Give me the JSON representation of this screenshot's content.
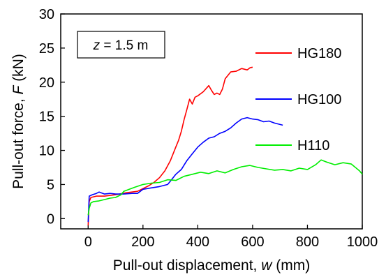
{
  "chart_data": {
    "type": "line",
    "xlabel_prefix": "Pull-out displacement, ",
    "xlabel_var": "w",
    "xlabel_suffix": " (mm)",
    "ylabel_prefix": "Pull-out force, ",
    "ylabel_var": "F",
    "ylabel_suffix": " (kN)",
    "annotation_var": "z",
    "annotation_rest": " = 1.5 m",
    "xlim": [
      -100,
      1000
    ],
    "ylim": [
      -1.5,
      30
    ],
    "xticks": [
      0,
      200,
      400,
      600,
      800,
      1000
    ],
    "yticks": [
      0,
      5,
      10,
      15,
      20,
      25,
      30
    ],
    "grid": false,
    "legend_placement": "right, labels beside line samples",
    "series": [
      {
        "name": "HG180",
        "color": "#ff0000",
        "x": [
          0,
          4,
          10,
          30,
          60,
          100,
          140,
          180,
          200,
          220,
          240,
          260,
          280,
          300,
          310,
          320,
          330,
          340,
          350,
          360,
          370,
          380,
          390,
          400,
          420,
          440,
          450,
          460,
          470,
          480,
          490,
          500,
          520,
          540,
          560,
          580,
          590,
          600
        ],
        "y": [
          -1,
          2.5,
          3.1,
          3.3,
          3.3,
          3.5,
          3.8,
          4.0,
          4.4,
          4.8,
          5.3,
          6.0,
          7.0,
          8.5,
          9.5,
          10.5,
          11.5,
          12.8,
          14.5,
          16.0,
          17.5,
          16.8,
          17.8,
          18.0,
          18.6,
          19.5,
          18.8,
          18.2,
          18.4,
          18.2,
          19.0,
          20.5,
          21.5,
          21.6,
          22.0,
          21.8,
          22.1,
          22.2
        ]
      },
      {
        "name": "HG100",
        "color": "#0000ff",
        "x": [
          0,
          4,
          15,
          30,
          40,
          60,
          80,
          100,
          130,
          160,
          180,
          200,
          230,
          260,
          290,
          300,
          320,
          340,
          360,
          380,
          400,
          420,
          440,
          460,
          480,
          500,
          520,
          540,
          560,
          580,
          600,
          620,
          640,
          660,
          680,
          700,
          710
        ],
        "y": [
          -0.5,
          3.3,
          3.5,
          3.7,
          3.9,
          3.6,
          3.7,
          3.6,
          3.6,
          3.7,
          3.7,
          4.3,
          4.5,
          4.7,
          5.0,
          5.5,
          6.5,
          7.2,
          8.5,
          9.5,
          10.5,
          11.2,
          11.8,
          12.0,
          12.5,
          12.8,
          13.3,
          14.0,
          14.6,
          14.8,
          14.6,
          14.5,
          14.2,
          14.3,
          14.0,
          13.8,
          13.7
        ]
      },
      {
        "name": "H110",
        "color": "#00ee00",
        "x": [
          0,
          4,
          10,
          20,
          40,
          60,
          80,
          100,
          120,
          130,
          150,
          170,
          200,
          230,
          260,
          290,
          320,
          350,
          380,
          410,
          440,
          470,
          500,
          530,
          560,
          590,
          620,
          650,
          680,
          710,
          740,
          770,
          800,
          830,
          850,
          870,
          900,
          930,
          960,
          990,
          1000
        ],
        "y": [
          0.5,
          1.5,
          2.3,
          2.5,
          2.6,
          2.8,
          3.0,
          3.1,
          3.5,
          4.0,
          4.3,
          4.6,
          5.0,
          5.2,
          5.3,
          5.7,
          5.6,
          6.2,
          6.5,
          6.8,
          6.6,
          7.0,
          6.7,
          7.2,
          7.6,
          7.8,
          7.5,
          7.3,
          7.1,
          7.2,
          7.0,
          7.4,
          7.2,
          7.9,
          8.6,
          8.3,
          7.9,
          8.2,
          8.0,
          7.0,
          6.5
        ]
      }
    ]
  }
}
